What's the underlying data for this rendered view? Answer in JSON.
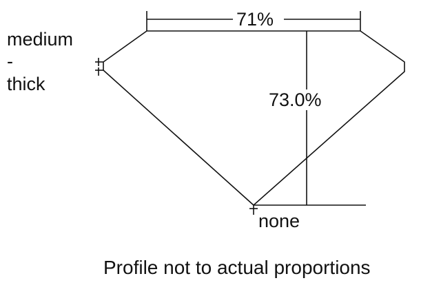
{
  "table_percent": "71%",
  "depth_percent": "73.0%",
  "girdle_label": [
    "medium",
    "-",
    "thick"
  ],
  "culet_label": "none",
  "caption": "Profile not to actual proportions",
  "colors": {
    "line": "#111111",
    "background": "#ffffff"
  }
}
